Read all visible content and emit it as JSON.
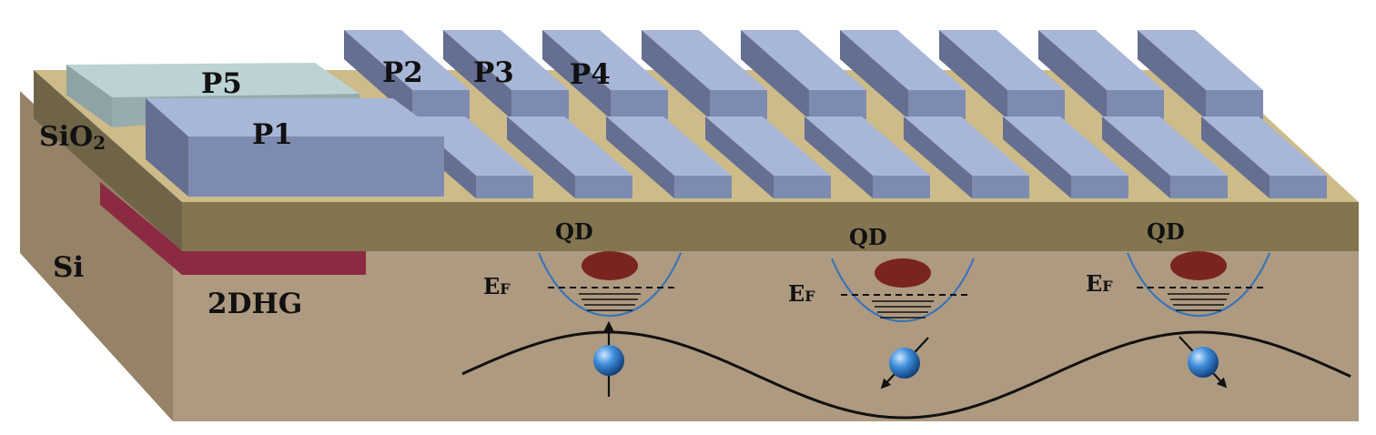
{
  "labels": {
    "sio2": "SiO",
    "sio2_sub": "2",
    "si": "Si",
    "twodhg": "2DHG",
    "p1": "P1",
    "p2": "P2",
    "p3": "P3",
    "p4": "P4",
    "p5": "P5",
    "qd": [
      "QD",
      "QD",
      "QD"
    ],
    "ef_main": "E",
    "ef_sub": "F"
  },
  "colors": {
    "si_front": "#ae9a80",
    "si_side": "#958267",
    "oxide_top": "#cdbb89",
    "oxide_front": "#837550",
    "oxide_side": "#6f6448",
    "gate_top": "#a8b6d8",
    "gate_front": "#7e8bb1",
    "gate_side": "#646f91",
    "p5_top": "#bcd2d4",
    "p5_front": "#97acae",
    "hole_gas": "#8c2a42",
    "dot": "#7a2420",
    "potential": "#3a74b8",
    "spin": "#3f8fdc",
    "wave": "#111111"
  },
  "spins": [
    {
      "dot": 1,
      "direction": "up"
    },
    {
      "dot": 2,
      "direction": "down-left"
    },
    {
      "dot": 3,
      "direction": "down-right"
    }
  ]
}
